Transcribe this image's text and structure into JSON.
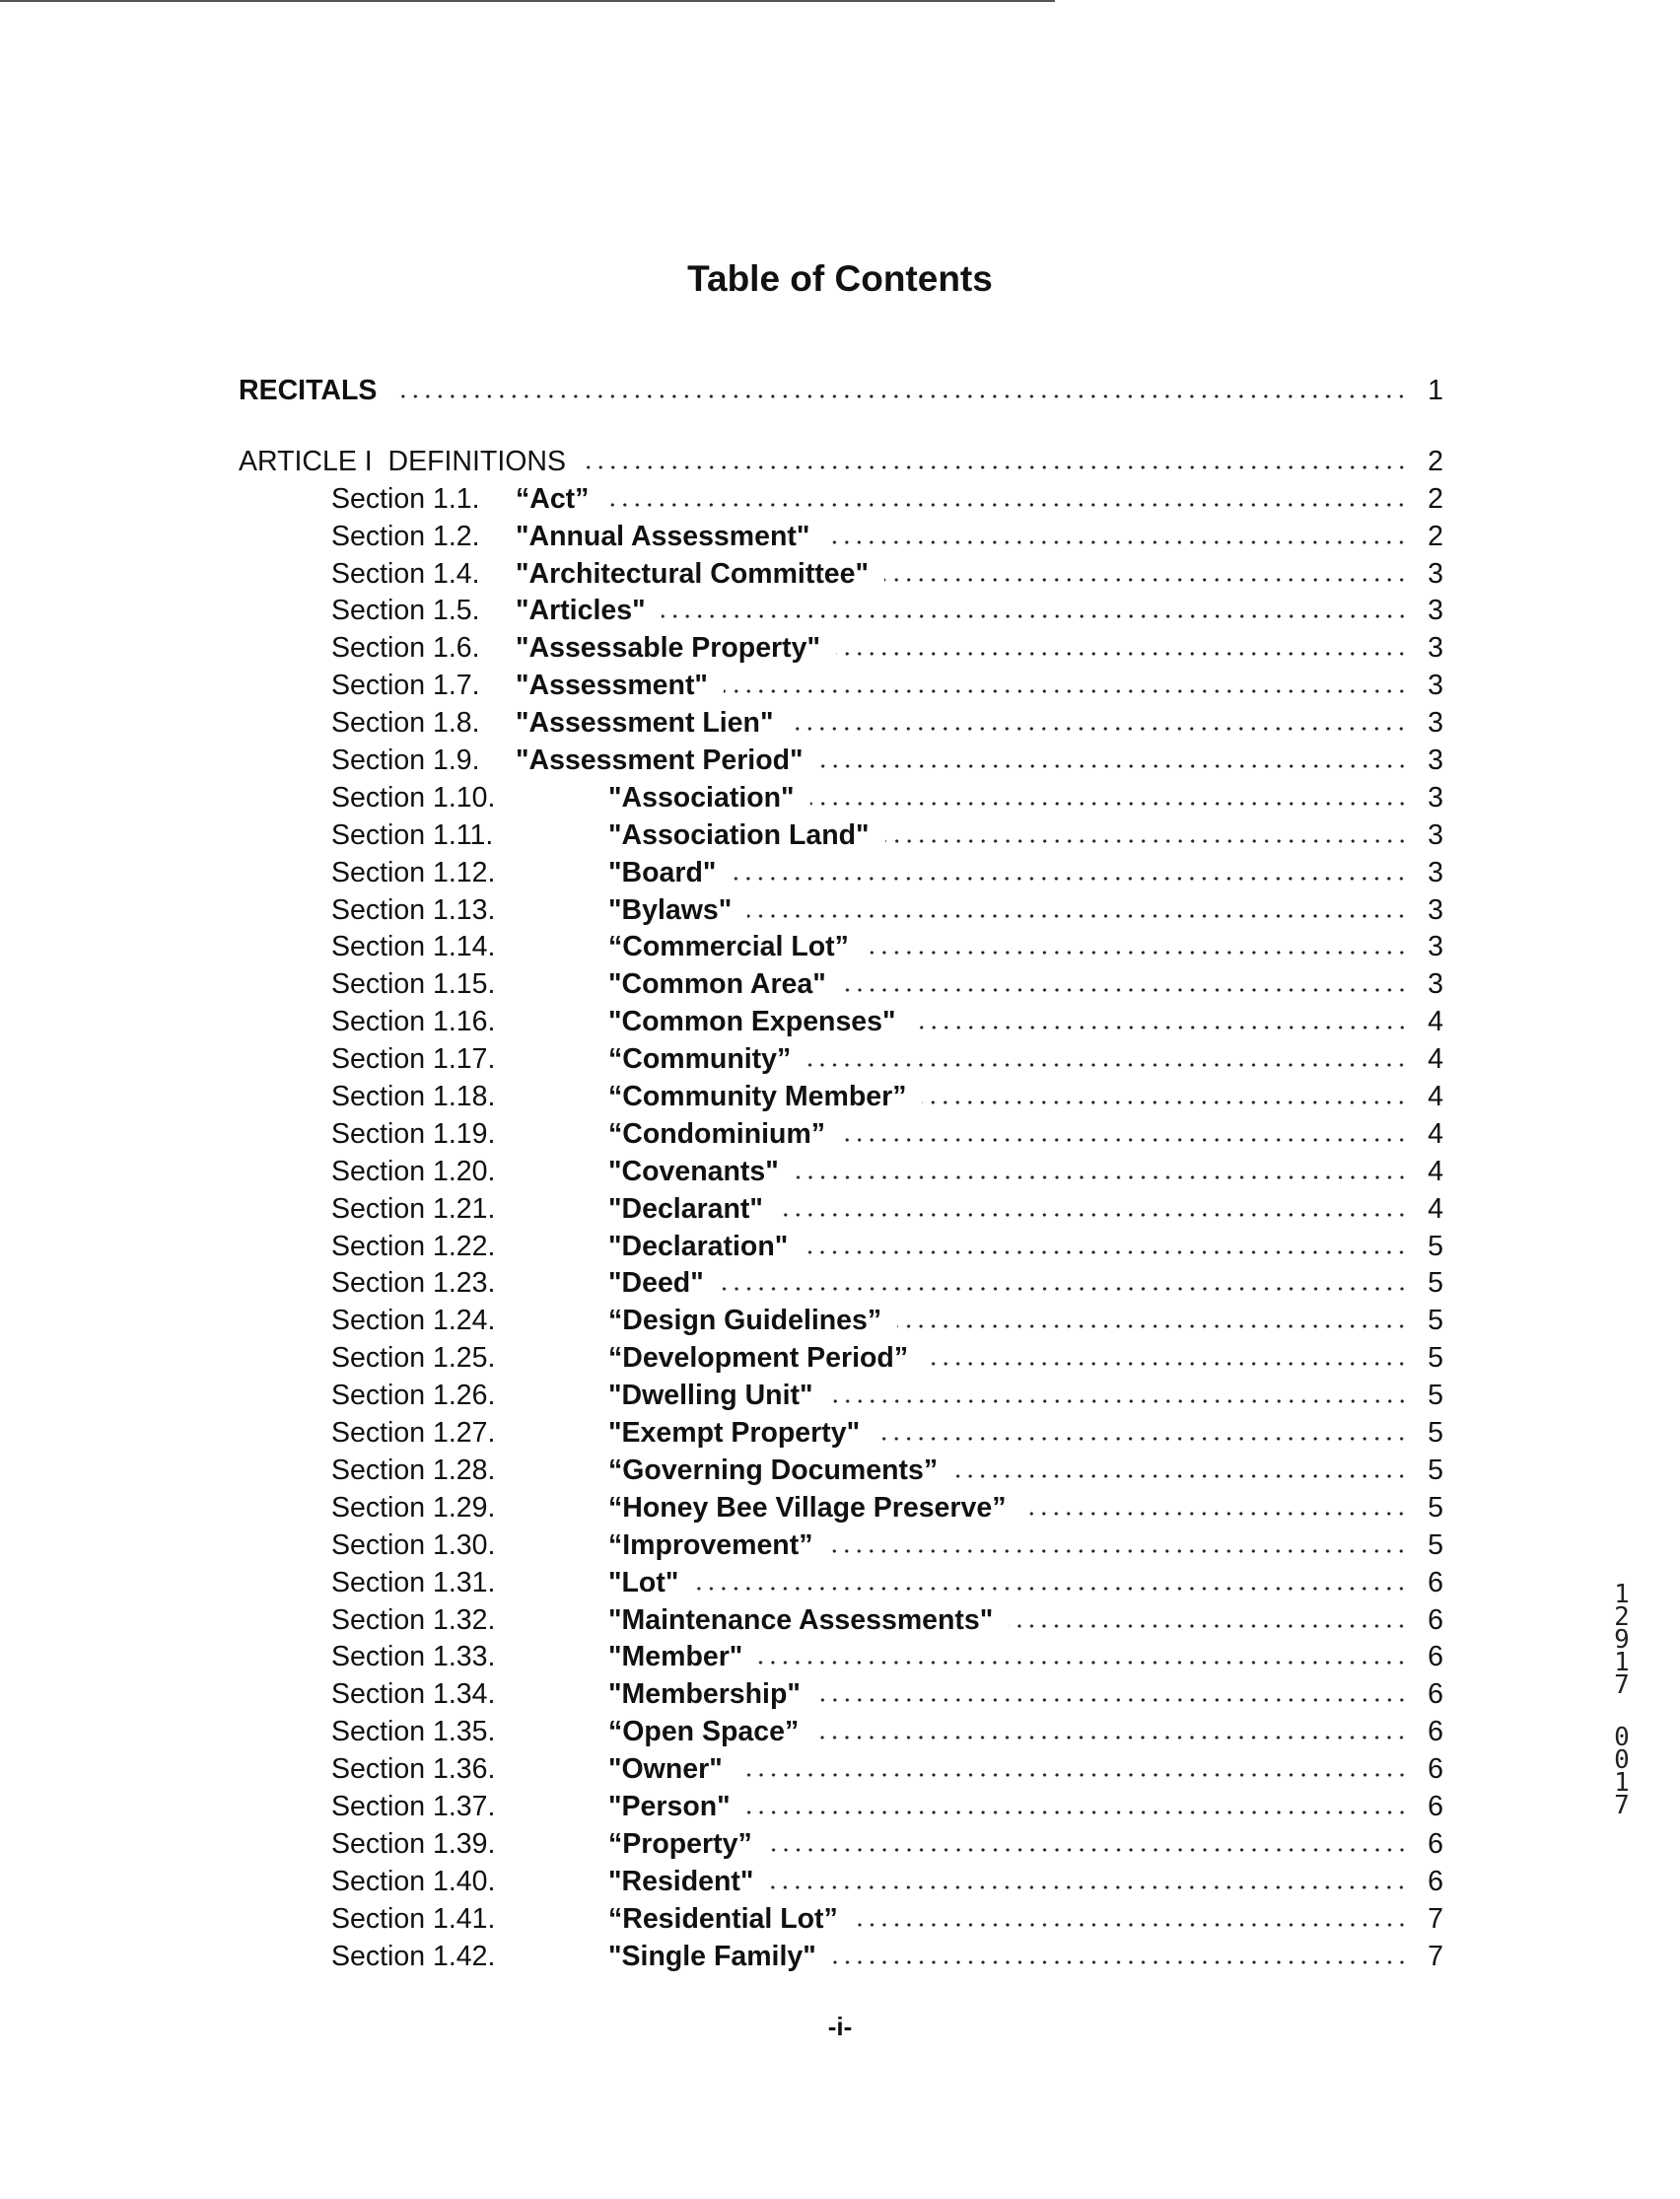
{
  "title": "Table of Contents",
  "recitals": {
    "label": "RECITALS",
    "page": "1"
  },
  "article": {
    "label": "ARTICLE I  DEFINITIONS",
    "page": "2"
  },
  "sections": [
    {
      "num": "Section 1.1.",
      "term": "“Act”",
      "page": "2"
    },
    {
      "num": "Section 1.2.",
      "term": "\"Annual Assessment\"",
      "page": "2"
    },
    {
      "num": "Section 1.4.",
      "term": "\"Architectural Committee\"",
      "page": "3"
    },
    {
      "num": "Section 1.5.",
      "term": "\"Articles\"",
      "page": "3"
    },
    {
      "num": "Section 1.6.",
      "term": "\"Assessable Property\"",
      "page": "3"
    },
    {
      "num": "Section 1.7.",
      "term": "\"Assessment\"",
      "page": "3"
    },
    {
      "num": "Section 1.8.",
      "term": "\"Assessment Lien\"",
      "page": "3"
    },
    {
      "num": "Section 1.9.",
      "term": "\"Assessment Period\"",
      "page": "3"
    },
    {
      "num": "Section 1.10.",
      "term": "\"Association\"",
      "page": "3"
    },
    {
      "num": "Section 1.11.",
      "term": "\"Association Land\"",
      "page": "3"
    },
    {
      "num": "Section 1.12.",
      "term": "\"Board\"",
      "page": "3"
    },
    {
      "num": "Section 1.13.",
      "term": "\"Bylaws\"",
      "page": "3"
    },
    {
      "num": "Section 1.14.",
      "term": "“Commercial Lot”",
      "page": "3"
    },
    {
      "num": "Section 1.15.",
      "term": "\"Common Area\"",
      "page": "3"
    },
    {
      "num": "Section 1.16.",
      "term": "\"Common Expenses\"",
      "page": "4"
    },
    {
      "num": "Section 1.17.",
      "term": "“Community”",
      "page": "4"
    },
    {
      "num": "Section 1.18.",
      "term": "“Community Member”",
      "page": "4"
    },
    {
      "num": "Section 1.19.",
      "term": "“Condominium”",
      "page": "4"
    },
    {
      "num": "Section 1.20.",
      "term": "\"Covenants\"",
      "page": "4"
    },
    {
      "num": "Section 1.21.",
      "term": "\"Declarant\"",
      "page": "4"
    },
    {
      "num": "Section 1.22.",
      "term": "\"Declaration\"",
      "page": "5"
    },
    {
      "num": "Section 1.23.",
      "term": "\"Deed\"",
      "page": "5"
    },
    {
      "num": "Section 1.24.",
      "term": "“Design Guidelines”",
      "page": "5"
    },
    {
      "num": "Section 1.25.",
      "term": "“Development Period”",
      "page": "5"
    },
    {
      "num": "Section 1.26.",
      "term": "\"Dwelling Unit\"",
      "page": "5"
    },
    {
      "num": "Section 1.27.",
      "term": "\"Exempt Property\"",
      "page": "5"
    },
    {
      "num": "Section 1.28.",
      "term": "“Governing Documents”",
      "page": "5"
    },
    {
      "num": "Section 1.29.",
      "term": "“Honey Bee Village Preserve”",
      "page": "5"
    },
    {
      "num": "Section 1.30.",
      "term": "“Improvement”",
      "page": "5"
    },
    {
      "num": "Section 1.31.",
      "term": "\"Lot\"",
      "page": "6"
    },
    {
      "num": "Section 1.32.",
      "term": "\"Maintenance Assessments\"",
      "page": "6"
    },
    {
      "num": "Section 1.33.",
      "term": "\"Member\"",
      "page": "6"
    },
    {
      "num": "Section 1.34.",
      "term": "\"Membership\"",
      "page": "6"
    },
    {
      "num": "Section 1.35.",
      "term": "“Open Space”",
      "page": "6"
    },
    {
      "num": "Section 1.36.",
      "term": "\"Owner\"",
      "page": "6"
    },
    {
      "num": "Section 1.37.",
      "term": "\"Person\"",
      "page": "6"
    },
    {
      "num": "Section 1.39.",
      "term": "“Property”",
      "page": "6"
    },
    {
      "num": "Section 1.40.",
      "term": "\"Resident\"",
      "page": "6"
    },
    {
      "num": "Section 1.41.",
      "term": "“Residential Lot”",
      "page": "7"
    },
    {
      "num": "Section 1.42.",
      "term": "\"Single Family\"",
      "page": "7"
    }
  ],
  "footer": "-i-",
  "stamp": {
    "line1": "12917",
    "line2": "0017"
  }
}
